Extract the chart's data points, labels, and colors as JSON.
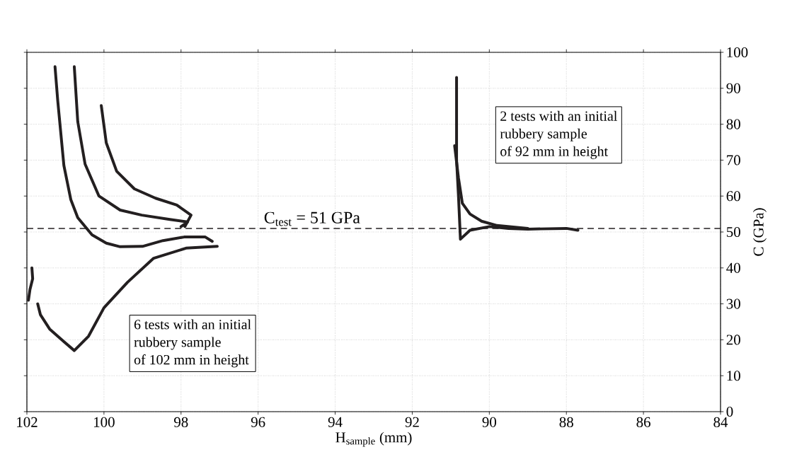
{
  "chart_data": {
    "type": "line",
    "xlabel": "H$_{sample}$ (mm)",
    "ylabel": "C (GPa)",
    "xlim": [
      102,
      84
    ],
    "xticks": [
      102,
      100,
      98,
      96,
      94,
      92,
      90,
      88,
      86,
      84
    ],
    "ylim": [
      0,
      100
    ],
    "yticks": [
      0,
      10,
      20,
      30,
      40,
      50,
      60,
      70,
      80,
      90,
      100
    ],
    "grid": true,
    "ref_lines": [
      {
        "axis": "y",
        "value": 51,
        "label": "C$_{test}$ = 51 GPa",
        "line_style": "dashed",
        "color": "#231f20"
      }
    ],
    "annotations": [
      "6 tests with an initial",
      "rubbery sample",
      "of 102 mm in height",
      "2 tests with an initial",
      "rubbery sample",
      "of 92 mm in height"
    ],
    "series": [
      {
        "color": "#231f20",
        "x": [
          101.27,
          101.2,
          101.04,
          100.86,
          100.68,
          100.31,
          99.94,
          99.58,
          99.0,
          98.47,
          97.92,
          97.37,
          97.19
        ],
        "values": [
          96,
          86.6,
          68.5,
          59,
          54,
          49.2,
          46.9,
          45.9,
          46,
          47.6,
          48.6,
          48.6,
          47.4
        ]
      },
      {
        "color": "#231f20",
        "x": [
          100.77,
          100.68,
          100.49,
          100.13,
          99.58,
          99.02,
          98.29,
          97.83,
          98.0
        ],
        "values": [
          96,
          80.7,
          68.9,
          60,
          56.1,
          54.7,
          53.5,
          52.8,
          51.5
        ]
      },
      {
        "color": "#231f20",
        "x": [
          100.07,
          99.94,
          99.67,
          99.21,
          98.66,
          98.11,
          97.74,
          97.9
        ],
        "values": [
          85.2,
          74.8,
          66.9,
          62,
          59.4,
          57.5,
          54.7,
          51.5
        ]
      },
      {
        "color": "#231f20",
        "x": [
          101.87,
          101.85,
          101.92,
          101.96
        ],
        "values": [
          40,
          37,
          34,
          31
        ]
      },
      {
        "color": "#231f20",
        "x": [
          101.72,
          101.65,
          101.41,
          101.04,
          100.77,
          100.4,
          100.0,
          99.39,
          98.71,
          97.87,
          97.06
        ],
        "values": [
          30,
          27,
          23,
          19.5,
          17,
          21,
          28.9,
          36,
          42.7,
          45.5,
          46
        ]
      },
      {
        "color": "#231f20",
        "x": [
          90.85,
          90.85,
          90.8,
          90.75,
          90.5,
          90.0,
          89.5,
          89.0,
          88.0,
          87.7
        ],
        "values": [
          93,
          70,
          60,
          48,
          50.5,
          51.5,
          51,
          50.8,
          51,
          50.5
        ]
      },
      {
        "color": "#231f20",
        "x": [
          90.9,
          90.8,
          90.7,
          90.5,
          90.2,
          89.8,
          89.0
        ],
        "values": [
          74,
          65,
          58,
          55,
          53,
          51.8,
          51
        ]
      }
    ]
  }
}
